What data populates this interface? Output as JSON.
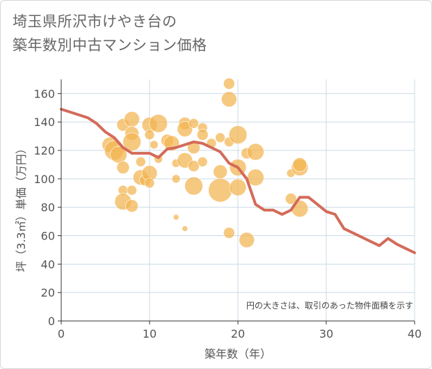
{
  "title_lines": [
    "埼玉県所沢市けやき台の",
    "築年数別中古マンション価格"
  ],
  "note": "円の大きさは、取引のあった物件面積を示す",
  "colors": {
    "bubble": "#f2b450",
    "line": "#d36b5a",
    "grid": "#c9dbe6",
    "axis": "#333333"
  },
  "chart_data": {
    "type": "scatter",
    "title": "埼玉県所沢市けやき台の築年数別中古マンション価格",
    "xlabel": "築年数（年）",
    "ylabel": "坪（3.3㎡）単価（万円）",
    "xlim": [
      0,
      40
    ],
    "ylim": [
      0,
      170
    ],
    "xticks": [
      0,
      10,
      20,
      30,
      40
    ],
    "yticks": [
      0,
      20,
      40,
      60,
      80,
      100,
      120,
      140,
      160
    ],
    "grid": true,
    "bubbles": [
      {
        "x": 5.5,
        "y": 124,
        "r": 11
      },
      {
        "x": 6,
        "y": 120,
        "r": 14
      },
      {
        "x": 6.5,
        "y": 117,
        "r": 12
      },
      {
        "x": 7,
        "y": 138,
        "r": 9
      },
      {
        "x": 7,
        "y": 108,
        "r": 9
      },
      {
        "x": 7,
        "y": 92,
        "r": 7
      },
      {
        "x": 7,
        "y": 84,
        "r": 12
      },
      {
        "x": 8,
        "y": 142,
        "r": 11
      },
      {
        "x": 8,
        "y": 132,
        "r": 10
      },
      {
        "x": 8,
        "y": 126,
        "r": 13
      },
      {
        "x": 8,
        "y": 92,
        "r": 7
      },
      {
        "x": 8,
        "y": 81,
        "r": 9
      },
      {
        "x": 9,
        "y": 112,
        "r": 7
      },
      {
        "x": 9,
        "y": 101,
        "r": 11
      },
      {
        "x": 9.5,
        "y": 99,
        "r": 8
      },
      {
        "x": 10,
        "y": 138,
        "r": 11
      },
      {
        "x": 10,
        "y": 131,
        "r": 7
      },
      {
        "x": 10,
        "y": 104,
        "r": 11
      },
      {
        "x": 10,
        "y": 97,
        "r": 7
      },
      {
        "x": 10.5,
        "y": 124,
        "r": 6
      },
      {
        "x": 11,
        "y": 139,
        "r": 13
      },
      {
        "x": 11,
        "y": 114,
        "r": 6
      },
      {
        "x": 12,
        "y": 127,
        "r": 9
      },
      {
        "x": 12.5,
        "y": 125,
        "r": 11
      },
      {
        "x": 13,
        "y": 111,
        "r": 6
      },
      {
        "x": 13,
        "y": 100,
        "r": 6
      },
      {
        "x": 13,
        "y": 73,
        "r": 4
      },
      {
        "x": 14,
        "y": 139,
        "r": 9
      },
      {
        "x": 14,
        "y": 135,
        "r": 11
      },
      {
        "x": 14,
        "y": 113,
        "r": 11
      },
      {
        "x": 14,
        "y": 65,
        "r": 4
      },
      {
        "x": 15,
        "y": 139,
        "r": 7
      },
      {
        "x": 15,
        "y": 122,
        "r": 9
      },
      {
        "x": 15,
        "y": 109,
        "r": 8
      },
      {
        "x": 15,
        "y": 95,
        "r": 13
      },
      {
        "x": 16,
        "y": 136,
        "r": 7
      },
      {
        "x": 16,
        "y": 131,
        "r": 8
      },
      {
        "x": 16,
        "y": 112,
        "r": 7
      },
      {
        "x": 17,
        "y": 125,
        "r": 7
      },
      {
        "x": 18,
        "y": 129,
        "r": 7
      },
      {
        "x": 18,
        "y": 105,
        "r": 10
      },
      {
        "x": 18,
        "y": 92,
        "r": 17
      },
      {
        "x": 19,
        "y": 167,
        "r": 8
      },
      {
        "x": 19,
        "y": 156,
        "r": 11
      },
      {
        "x": 19,
        "y": 126,
        "r": 7
      },
      {
        "x": 19,
        "y": 62,
        "r": 8
      },
      {
        "x": 20,
        "y": 131,
        "r": 13
      },
      {
        "x": 20,
        "y": 108,
        "r": 12
      },
      {
        "x": 20,
        "y": 94,
        "r": 12
      },
      {
        "x": 21,
        "y": 118,
        "r": 8
      },
      {
        "x": 21,
        "y": 57,
        "r": 11
      },
      {
        "x": 22,
        "y": 119,
        "r": 12
      },
      {
        "x": 22,
        "y": 101,
        "r": 12
      },
      {
        "x": 26,
        "y": 86,
        "r": 8
      },
      {
        "x": 26,
        "y": 104,
        "r": 6
      },
      {
        "x": 27,
        "y": 108,
        "r": 12
      },
      {
        "x": 27,
        "y": 110,
        "r": 10
      },
      {
        "x": 27,
        "y": 79,
        "r": 12
      }
    ],
    "series": [
      {
        "type": "line",
        "points": [
          [
            0,
            149
          ],
          [
            1,
            147
          ],
          [
            2,
            145
          ],
          [
            3,
            143
          ],
          [
            4,
            139
          ],
          [
            5,
            133
          ],
          [
            6,
            129
          ],
          [
            7,
            122
          ],
          [
            8,
            118
          ],
          [
            9,
            118
          ],
          [
            10,
            118
          ],
          [
            11,
            115
          ],
          [
            12,
            121
          ],
          [
            13,
            122
          ],
          [
            14,
            124
          ],
          [
            15,
            126
          ],
          [
            16,
            125
          ],
          [
            17,
            122
          ],
          [
            18,
            119
          ],
          [
            19,
            111
          ],
          [
            20,
            108
          ],
          [
            21,
            100
          ],
          [
            22,
            82
          ],
          [
            23,
            78
          ],
          [
            24,
            78
          ],
          [
            25,
            75
          ],
          [
            26,
            78
          ],
          [
            27,
            87
          ],
          [
            28,
            87
          ],
          [
            29,
            82
          ],
          [
            30,
            77
          ],
          [
            31,
            75
          ],
          [
            32,
            65
          ],
          [
            33,
            62
          ],
          [
            34,
            59
          ],
          [
            35,
            56
          ],
          [
            36,
            53
          ],
          [
            37,
            58
          ],
          [
            38,
            54
          ],
          [
            39,
            51
          ],
          [
            40,
            48
          ]
        ]
      }
    ]
  }
}
